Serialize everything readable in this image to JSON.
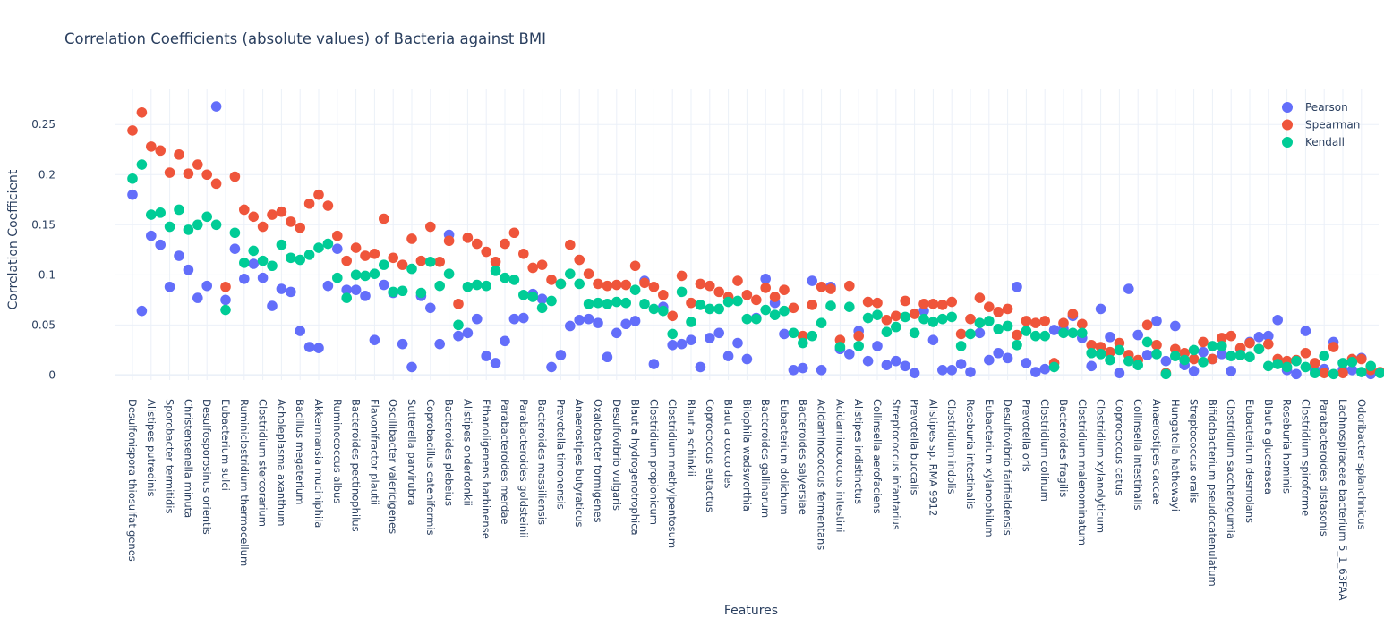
{
  "chart_data": {
    "type": "scatter",
    "title": "Correlation Coefficients (absolute values) of Bacteria against BMI",
    "xlabel": "Features",
    "ylabel": "Correlation Coefficient",
    "ylim": [
      -0.005,
      0.285
    ],
    "yticks": [
      0,
      0.05,
      0.1,
      0.15,
      0.2,
      0.25
    ],
    "ytick_labels": [
      "0",
      "0.05",
      "0.1",
      "0.15",
      "0.2",
      "0.25"
    ],
    "grid": true,
    "legend_position": "top-right",
    "labeled_categories": [
      "Desulfonispora thiosulfatigenes",
      "Alistipes putredinis",
      "Sporobacter termitidis",
      "Christensenella minuta",
      "Desulfosporosinus orientis",
      "Eubacterium sulci",
      "Ruminiclostridium thermocellum",
      "Clostridium stercorarium",
      "Acholeplasma axanthum",
      "Bacillus megaterium",
      "Akkermansia muciniphila",
      "Ruminococcus albus",
      "Bacteroides pectinophilus",
      "Flavonifractor plautii",
      "Oscillibacter valericigenes",
      "Sutterella parvirubra",
      "Coprobacillus cateniformis",
      "Bacteroides plebeius",
      "Alistipes onderdonkii",
      "Ethanoligenens harbinense",
      "Parabacteroides merdae",
      "Parabacteroides goldsteinii",
      "Bacteroides massiliensis",
      "Prevotella timonensis",
      "Anaerostipes butyraticus",
      "Oxalobacter formigenes",
      "Desulfovibrio vulgaris",
      "Blautia hydrogenotrophica",
      "Clostridium propionicum",
      "Clostridium methylpentosum",
      "Blautia schinkii",
      "Coprococcus eutactus",
      "Blautia coccoides",
      "Bilophila wadsworthia",
      "Bacteroides gallinarum",
      "Eubacterium dolichum",
      "Bacteroides salyersiae",
      "Acidaminococcus fermentans",
      "Acidaminococcus intestini",
      "Alistipes indistinctus",
      "Collinsella aerofaciens",
      "Streptococcus infantarius",
      "Prevotella buccalis",
      "Alistipes sp. RMA 9912",
      "Clostridium indolis",
      "Roseburia intestinalis",
      "Eubacterium xylanophilum",
      "Desulfovibrio fairfieldensis",
      "Prevotella oris",
      "Clostridium colinum",
      "Bacteroides fragilis",
      "Clostridium malenominatum",
      "Clostridium xylanolyticum",
      "Coprococcus catus",
      "Collinsella intestinalis",
      "Anaerostipes caccae",
      "Hungatella hathewayi",
      "Streptococcus oralis",
      "Bifidobacterium pseudocatenulatum",
      "Clostridium saccharogumia",
      "Eubacterium desmolans",
      "Blautia glucerasea",
      "Roseburia hominis",
      "Clostridium spiroforme",
      "Parabacteroides distasonis",
      "Lachnospiraceae bacterium 5_1_63FAA",
      "Odoribacter splanchnicus"
    ],
    "series": [
      {
        "name": "Pearson",
        "color": "#636efa",
        "values": [
          0.18,
          0.064,
          0.139,
          0.13,
          0.088,
          0.119,
          0.105,
          0.077,
          0.089,
          0.268,
          0.075,
          0.126,
          0.096,
          0.111,
          0.097,
          0.069,
          0.086,
          0.083,
          0.044,
          0.028,
          0.027,
          0.089,
          0.126,
          0.085,
          0.085,
          0.079,
          0.035,
          0.09,
          0.082,
          0.031,
          0.008,
          0.079,
          0.067,
          0.031,
          0.14,
          0.039,
          0.042,
          0.056,
          0.019,
          0.012,
          0.034,
          0.056,
          0.057,
          0.081,
          0.076,
          0.008,
          0.02,
          0.049,
          0.055,
          0.056,
          0.052,
          0.018,
          0.042,
          0.051,
          0.054,
          0.094,
          0.011,
          0.068,
          0.03,
          0.031,
          0.035,
          0.008,
          0.037,
          0.042,
          0.019,
          0.032,
          0.016,
          0.057,
          0.096,
          0.072,
          0.041,
          0.005,
          0.007,
          0.094,
          0.005,
          0.088,
          0.026,
          0.021,
          0.044,
          0.014,
          0.029,
          0.01,
          0.014,
          0.009,
          0.002,
          0.064,
          0.035,
          0.005,
          0.005,
          0.011,
          0.003,
          0.042,
          0.015,
          0.022,
          0.017,
          0.088,
          0.012,
          0.003,
          0.006,
          0.045,
          0.046,
          0.059,
          0.037,
          0.009,
          0.066,
          0.038,
          0.002,
          0.086,
          0.04,
          0.02,
          0.054,
          0.014,
          0.049,
          0.01,
          0.004,
          0.023,
          0.016,
          0.021,
          0.004,
          0.026,
          0.033,
          0.038,
          0.039,
          0.055,
          0.005,
          0.001,
          0.044,
          0.005,
          0.006,
          0.033,
          0.005,
          0.005,
          0.017,
          0.001
        ]
      },
      {
        "name": "Spearman",
        "color": "#ef553b",
        "values": [
          0.244,
          0.262,
          0.228,
          0.224,
          0.202,
          0.22,
          0.201,
          0.21,
          0.2,
          0.191,
          0.088,
          0.198,
          0.165,
          0.158,
          0.148,
          0.16,
          0.163,
          0.153,
          0.147,
          0.171,
          0.18,
          0.169,
          0.139,
          0.114,
          0.127,
          0.119,
          0.121,
          0.156,
          0.117,
          0.11,
          0.136,
          0.114,
          0.148,
          0.113,
          0.134,
          0.071,
          0.137,
          0.131,
          0.123,
          0.113,
          0.131,
          0.142,
          0.121,
          0.107,
          0.11,
          0.095,
          0.091,
          0.13,
          0.115,
          0.101,
          0.091,
          0.089,
          0.09,
          0.09,
          0.109,
          0.092,
          0.088,
          0.08,
          0.059,
          0.099,
          0.072,
          0.091,
          0.089,
          0.083,
          0.078,
          0.094,
          0.08,
          0.075,
          0.087,
          0.078,
          0.085,
          0.067,
          0.039,
          0.07,
          0.088,
          0.086,
          0.035,
          0.089,
          0.039,
          0.073,
          0.072,
          0.055,
          0.059,
          0.074,
          0.061,
          0.071,
          0.071,
          0.07,
          0.073,
          0.041,
          0.056,
          0.077,
          0.068,
          0.063,
          0.066,
          0.04,
          0.054,
          0.052,
          0.054,
          0.012,
          0.052,
          0.061,
          0.051,
          0.03,
          0.028,
          0.023,
          0.032,
          0.02,
          0.015,
          0.05,
          0.03,
          0.002,
          0.026,
          0.022,
          0.016,
          0.033,
          0.016,
          0.037,
          0.039,
          0.027,
          0.032,
          0.026,
          0.031,
          0.016,
          0.014,
          0.015,
          0.022,
          0.012,
          0.002,
          0.028,
          0.002,
          0.016,
          0.016,
          0.005,
          0.003,
          0.002
        ]
      },
      {
        "name": "Kendall",
        "color": "#00cc96",
        "values": [
          0.196,
          0.21,
          0.16,
          0.162,
          0.148,
          0.165,
          0.145,
          0.15,
          0.158,
          0.15,
          0.065,
          0.142,
          0.112,
          0.124,
          0.114,
          0.109,
          0.13,
          0.117,
          0.115,
          0.12,
          0.127,
          0.131,
          0.097,
          0.077,
          0.1,
          0.099,
          0.101,
          0.11,
          0.083,
          0.084,
          0.106,
          0.082,
          0.113,
          0.089,
          0.101,
          0.05,
          0.088,
          0.09,
          0.089,
          0.104,
          0.097,
          0.095,
          0.08,
          0.078,
          0.067,
          0.074,
          0.091,
          0.101,
          0.091,
          0.071,
          0.072,
          0.071,
          0.073,
          0.072,
          0.085,
          0.071,
          0.066,
          0.064,
          0.041,
          0.083,
          0.053,
          0.07,
          0.066,
          0.066,
          0.073,
          0.074,
          0.056,
          0.056,
          0.065,
          0.06,
          0.064,
          0.042,
          0.032,
          0.039,
          0.052,
          0.069,
          0.028,
          0.068,
          0.029,
          0.057,
          0.06,
          0.043,
          0.048,
          0.058,
          0.042,
          0.056,
          0.053,
          0.056,
          0.058,
          0.029,
          0.041,
          0.052,
          0.054,
          0.046,
          0.049,
          0.03,
          0.044,
          0.039,
          0.039,
          0.008,
          0.042,
          0.042,
          0.042,
          0.022,
          0.021,
          0.015,
          0.025,
          0.014,
          0.01,
          0.033,
          0.021,
          0.001,
          0.019,
          0.015,
          0.025,
          0.013,
          0.029,
          0.029,
          0.019,
          0.02,
          0.018,
          0.026,
          0.009,
          0.011,
          0.008,
          0.014,
          0.008,
          0.002,
          0.019,
          0.001,
          0.012,
          0.013,
          0.003,
          0.009,
          0.002,
          0.001
        ]
      }
    ]
  }
}
